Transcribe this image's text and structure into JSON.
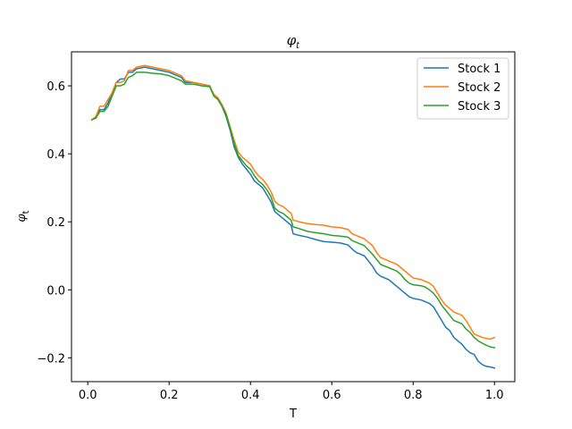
{
  "chart_data": {
    "type": "line",
    "title": "φ",
    "title_sub": "t",
    "xlabel": "T",
    "ylabel": "φ",
    "ylabel_sub": "t",
    "xlim": [
      -0.04,
      1.05
    ],
    "ylim": [
      -0.27,
      0.7
    ],
    "xticks": [
      0.0,
      0.2,
      0.4,
      0.6,
      0.8,
      1.0
    ],
    "xtick_labels": [
      "0.0",
      "0.2",
      "0.4",
      "0.6",
      "0.8",
      "1.0"
    ],
    "yticks": [
      -0.2,
      0.0,
      0.2,
      0.4,
      0.6
    ],
    "ytick_labels": [
      "−0.2",
      "0.0",
      "0.2",
      "0.4",
      "0.6"
    ],
    "grid": false,
    "legend_position": "top-right",
    "series": [
      {
        "name": "Stock 1",
        "color": "#1f77b4",
        "points": [
          [
            0.01,
            0.5
          ],
          [
            0.02,
            0.51
          ],
          [
            0.03,
            0.53
          ],
          [
            0.04,
            0.53
          ],
          [
            0.05,
            0.55
          ],
          [
            0.06,
            0.58
          ],
          [
            0.07,
            0.61
          ],
          [
            0.08,
            0.62
          ],
          [
            0.09,
            0.62
          ],
          [
            0.1,
            0.64
          ],
          [
            0.11,
            0.64
          ],
          [
            0.12,
            0.65
          ],
          [
            0.14,
            0.655
          ],
          [
            0.16,
            0.65
          ],
          [
            0.18,
            0.645
          ],
          [
            0.2,
            0.64
          ],
          [
            0.22,
            0.63
          ],
          [
            0.23,
            0.625
          ],
          [
            0.24,
            0.61
          ],
          [
            0.26,
            0.61
          ],
          [
            0.28,
            0.605
          ],
          [
            0.3,
            0.6
          ],
          [
            0.31,
            0.57
          ],
          [
            0.32,
            0.56
          ],
          [
            0.33,
            0.54
          ],
          [
            0.34,
            0.51
          ],
          [
            0.35,
            0.47
          ],
          [
            0.36,
            0.42
          ],
          [
            0.37,
            0.39
          ],
          [
            0.38,
            0.37
          ],
          [
            0.39,
            0.355
          ],
          [
            0.4,
            0.34
          ],
          [
            0.41,
            0.32
          ],
          [
            0.42,
            0.31
          ],
          [
            0.43,
            0.3
          ],
          [
            0.44,
            0.28
          ],
          [
            0.45,
            0.26
          ],
          [
            0.46,
            0.23
          ],
          [
            0.47,
            0.22
          ],
          [
            0.48,
            0.21
          ],
          [
            0.49,
            0.2
          ],
          [
            0.5,
            0.19
          ],
          [
            0.505,
            0.165
          ],
          [
            0.52,
            0.16
          ],
          [
            0.54,
            0.155
          ],
          [
            0.56,
            0.148
          ],
          [
            0.58,
            0.142
          ],
          [
            0.6,
            0.14
          ],
          [
            0.62,
            0.138
          ],
          [
            0.64,
            0.132
          ],
          [
            0.65,
            0.12
          ],
          [
            0.66,
            0.11
          ],
          [
            0.68,
            0.1
          ],
          [
            0.7,
            0.07
          ],
          [
            0.71,
            0.05
          ],
          [
            0.72,
            0.04
          ],
          [
            0.74,
            0.03
          ],
          [
            0.76,
            0.01
          ],
          [
            0.77,
            0.0
          ],
          [
            0.78,
            -0.01
          ],
          [
            0.79,
            -0.02
          ],
          [
            0.8,
            -0.025
          ],
          [
            0.82,
            -0.03
          ],
          [
            0.83,
            -0.035
          ],
          [
            0.84,
            -0.04
          ],
          [
            0.85,
            -0.05
          ],
          [
            0.86,
            -0.07
          ],
          [
            0.87,
            -0.09
          ],
          [
            0.88,
            -0.11
          ],
          [
            0.89,
            -0.12
          ],
          [
            0.9,
            -0.14
          ],
          [
            0.91,
            -0.15
          ],
          [
            0.92,
            -0.16
          ],
          [
            0.93,
            -0.175
          ],
          [
            0.94,
            -0.185
          ],
          [
            0.95,
            -0.19
          ],
          [
            0.96,
            -0.21
          ],
          [
            0.97,
            -0.22
          ],
          [
            0.98,
            -0.225
          ],
          [
            0.99,
            -0.227
          ],
          [
            1.0,
            -0.23
          ]
        ]
      },
      {
        "name": "Stock 2",
        "color": "#ff7f0e",
        "points": [
          [
            0.01,
            0.5
          ],
          [
            0.02,
            0.51
          ],
          [
            0.03,
            0.54
          ],
          [
            0.04,
            0.54
          ],
          [
            0.05,
            0.56
          ],
          [
            0.06,
            0.58
          ],
          [
            0.07,
            0.61
          ],
          [
            0.08,
            0.61
          ],
          [
            0.09,
            0.615
          ],
          [
            0.1,
            0.645
          ],
          [
            0.11,
            0.645
          ],
          [
            0.12,
            0.655
          ],
          [
            0.14,
            0.66
          ],
          [
            0.16,
            0.655
          ],
          [
            0.18,
            0.65
          ],
          [
            0.2,
            0.645
          ],
          [
            0.22,
            0.635
          ],
          [
            0.23,
            0.63
          ],
          [
            0.24,
            0.615
          ],
          [
            0.26,
            0.61
          ],
          [
            0.28,
            0.605
          ],
          [
            0.3,
            0.6
          ],
          [
            0.31,
            0.575
          ],
          [
            0.32,
            0.565
          ],
          [
            0.33,
            0.545
          ],
          [
            0.34,
            0.52
          ],
          [
            0.35,
            0.48
          ],
          [
            0.36,
            0.44
          ],
          [
            0.37,
            0.405
          ],
          [
            0.38,
            0.39
          ],
          [
            0.39,
            0.38
          ],
          [
            0.4,
            0.37
          ],
          [
            0.41,
            0.35
          ],
          [
            0.42,
            0.335
          ],
          [
            0.43,
            0.325
          ],
          [
            0.44,
            0.31
          ],
          [
            0.45,
            0.29
          ],
          [
            0.46,
            0.26
          ],
          [
            0.47,
            0.25
          ],
          [
            0.48,
            0.245
          ],
          [
            0.49,
            0.235
          ],
          [
            0.5,
            0.225
          ],
          [
            0.505,
            0.205
          ],
          [
            0.52,
            0.2
          ],
          [
            0.54,
            0.195
          ],
          [
            0.56,
            0.192
          ],
          [
            0.58,
            0.19
          ],
          [
            0.6,
            0.185
          ],
          [
            0.62,
            0.183
          ],
          [
            0.64,
            0.178
          ],
          [
            0.65,
            0.165
          ],
          [
            0.66,
            0.16
          ],
          [
            0.68,
            0.15
          ],
          [
            0.7,
            0.13
          ],
          [
            0.71,
            0.11
          ],
          [
            0.72,
            0.095
          ],
          [
            0.74,
            0.085
          ],
          [
            0.76,
            0.075
          ],
          [
            0.77,
            0.065
          ],
          [
            0.78,
            0.055
          ],
          [
            0.79,
            0.045
          ],
          [
            0.8,
            0.035
          ],
          [
            0.82,
            0.03
          ],
          [
            0.83,
            0.025
          ],
          [
            0.84,
            0.02
          ],
          [
            0.85,
            0.01
          ],
          [
            0.86,
            -0.01
          ],
          [
            0.87,
            -0.03
          ],
          [
            0.88,
            -0.045
          ],
          [
            0.89,
            -0.055
          ],
          [
            0.9,
            -0.065
          ],
          [
            0.91,
            -0.07
          ],
          [
            0.92,
            -0.075
          ],
          [
            0.93,
            -0.09
          ],
          [
            0.94,
            -0.11
          ],
          [
            0.95,
            -0.13
          ],
          [
            0.96,
            -0.135
          ],
          [
            0.97,
            -0.14
          ],
          [
            0.98,
            -0.143
          ],
          [
            0.99,
            -0.145
          ],
          [
            1.0,
            -0.14
          ]
        ]
      },
      {
        "name": "Stock 3",
        "color": "#2ca02c",
        "points": [
          [
            0.01,
            0.5
          ],
          [
            0.02,
            0.505
          ],
          [
            0.03,
            0.525
          ],
          [
            0.04,
            0.525
          ],
          [
            0.05,
            0.54
          ],
          [
            0.06,
            0.57
          ],
          [
            0.07,
            0.6
          ],
          [
            0.08,
            0.6
          ],
          [
            0.09,
            0.605
          ],
          [
            0.1,
            0.625
          ],
          [
            0.11,
            0.63
          ],
          [
            0.12,
            0.64
          ],
          [
            0.14,
            0.64
          ],
          [
            0.16,
            0.637
          ],
          [
            0.18,
            0.635
          ],
          [
            0.2,
            0.63
          ],
          [
            0.22,
            0.62
          ],
          [
            0.23,
            0.615
          ],
          [
            0.24,
            0.605
          ],
          [
            0.26,
            0.605
          ],
          [
            0.28,
            0.6
          ],
          [
            0.3,
            0.597
          ],
          [
            0.31,
            0.57
          ],
          [
            0.32,
            0.56
          ],
          [
            0.33,
            0.54
          ],
          [
            0.34,
            0.515
          ],
          [
            0.35,
            0.475
          ],
          [
            0.36,
            0.43
          ],
          [
            0.37,
            0.395
          ],
          [
            0.38,
            0.38
          ],
          [
            0.39,
            0.365
          ],
          [
            0.4,
            0.355
          ],
          [
            0.41,
            0.335
          ],
          [
            0.42,
            0.32
          ],
          [
            0.43,
            0.31
          ],
          [
            0.44,
            0.295
          ],
          [
            0.45,
            0.275
          ],
          [
            0.46,
            0.24
          ],
          [
            0.47,
            0.23
          ],
          [
            0.48,
            0.225
          ],
          [
            0.49,
            0.215
          ],
          [
            0.5,
            0.205
          ],
          [
            0.505,
            0.185
          ],
          [
            0.52,
            0.18
          ],
          [
            0.54,
            0.172
          ],
          [
            0.56,
            0.168
          ],
          [
            0.58,
            0.165
          ],
          [
            0.6,
            0.16
          ],
          [
            0.62,
            0.158
          ],
          [
            0.64,
            0.155
          ],
          [
            0.65,
            0.145
          ],
          [
            0.66,
            0.14
          ],
          [
            0.68,
            0.13
          ],
          [
            0.7,
            0.105
          ],
          [
            0.71,
            0.09
          ],
          [
            0.72,
            0.075
          ],
          [
            0.74,
            0.065
          ],
          [
            0.76,
            0.055
          ],
          [
            0.77,
            0.045
          ],
          [
            0.78,
            0.03
          ],
          [
            0.79,
            0.02
          ],
          [
            0.8,
            0.015
          ],
          [
            0.82,
            0.012
          ],
          [
            0.83,
            0.008
          ],
          [
            0.84,
            0.0
          ],
          [
            0.85,
            -0.01
          ],
          [
            0.86,
            -0.025
          ],
          [
            0.87,
            -0.045
          ],
          [
            0.88,
            -0.06
          ],
          [
            0.89,
            -0.075
          ],
          [
            0.9,
            -0.09
          ],
          [
            0.91,
            -0.095
          ],
          [
            0.92,
            -0.1
          ],
          [
            0.93,
            -0.115
          ],
          [
            0.94,
            -0.125
          ],
          [
            0.95,
            -0.14
          ],
          [
            0.96,
            -0.15
          ],
          [
            0.97,
            -0.157
          ],
          [
            0.98,
            -0.163
          ],
          [
            0.99,
            -0.168
          ],
          [
            1.0,
            -0.17
          ]
        ]
      }
    ]
  }
}
